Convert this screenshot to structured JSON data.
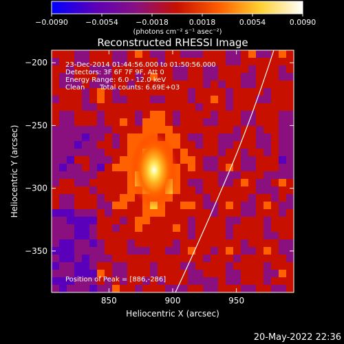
{
  "chart_data": {
    "type": "heatmap",
    "title": "Reconstructed RHESSI Image",
    "xlabel": "Heliocentric X (arcsec)",
    "ylabel": "Heliocentric Y (arcsec)",
    "x_range": [
      805,
      995
    ],
    "y_range": [
      -383,
      -190
    ],
    "x_ticks": [
      850,
      900,
      950
    ],
    "y_ticks": [
      -200,
      -250,
      -300,
      -350
    ],
    "x_tick_labels": [
      "850",
      "900",
      "950"
    ],
    "y_tick_labels": [
      "−200",
      "−250",
      "−300",
      "−350"
    ],
    "colorbar": {
      "range": [
        -0.009,
        0.009
      ],
      "ticks": [
        -0.009,
        -0.0054,
        -0.0018,
        0.0018,
        0.0054,
        0.009
      ],
      "tick_labels": [
        "−0.0090",
        "−0.0054",
        "−0.0018",
        "0.0018",
        "0.0054",
        "0.0090"
      ],
      "units_label": "(photons cm⁻² s⁻¹ asec⁻²)",
      "colormap": [
        "#0000ff",
        "#5a00ba",
        "#8a1080",
        "#c81000",
        "#ff6000",
        "#ffd030",
        "#ffffff"
      ]
    },
    "annotations": [
      "23-Dec-2014 01:44:56.000 to 01:50:56.000",
      "Detectors: 3F 6F 7F 9F, Att 0",
      "Energy Range: 6.0 - 12.0 keV",
      "Clean",
      "Total counts: 6.69E+03"
    ],
    "peak_label": "Position of Peak = [886,-286]",
    "peak": [
      886,
      -286
    ],
    "grid": false
  },
  "footer_date": "20-May-2022 22:36"
}
